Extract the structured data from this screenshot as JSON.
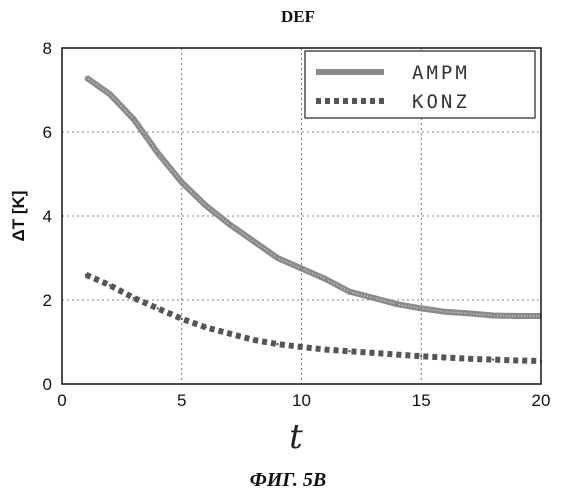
{
  "chart_data": {
    "type": "line",
    "title": "DEF",
    "xlabel": "t",
    "ylabel": "ΔT [K]",
    "caption": "ФИГ. 5B",
    "xlim": [
      0,
      20
    ],
    "ylim": [
      0,
      8
    ],
    "xticks": [
      0,
      5,
      10,
      15,
      20
    ],
    "yticks": [
      0,
      2,
      4,
      6,
      8
    ],
    "grid": true,
    "legend_position": "top-right",
    "x": [
      1,
      2,
      3,
      4,
      5,
      6,
      7,
      8,
      9,
      10,
      11,
      12,
      13,
      14,
      15,
      16,
      17,
      18,
      19,
      20
    ],
    "series": [
      {
        "name": "AMPM",
        "style": "solid",
        "color": "#8a8a8a",
        "values": [
          7.3,
          6.9,
          6.3,
          5.5,
          4.8,
          4.25,
          3.8,
          3.4,
          3.0,
          2.75,
          2.5,
          2.2,
          2.05,
          1.9,
          1.8,
          1.72,
          1.68,
          1.63,
          1.62,
          1.62
        ]
      },
      {
        "name": "KONZ",
        "style": "dotted",
        "color": "#555555",
        "values": [
          2.6,
          2.35,
          2.05,
          1.8,
          1.55,
          1.35,
          1.2,
          1.05,
          0.95,
          0.88,
          0.82,
          0.78,
          0.74,
          0.7,
          0.66,
          0.63,
          0.6,
          0.58,
          0.56,
          0.55
        ]
      }
    ]
  }
}
